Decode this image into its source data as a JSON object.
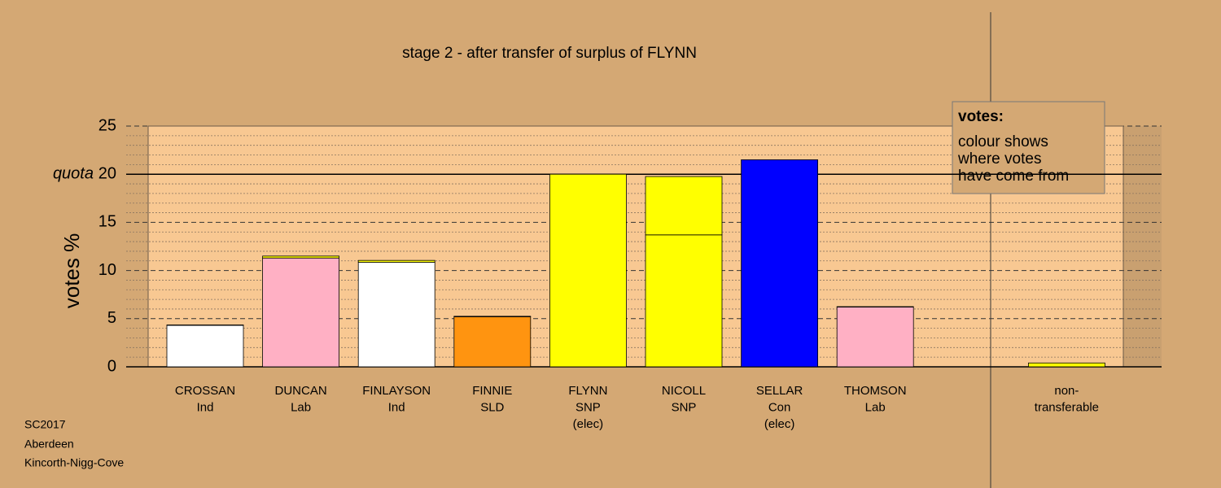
{
  "chart_data": {
    "type": "stacked-bar",
    "title": "stage 2 - after transfer of surplus of FLYNN",
    "y_label": "votes %",
    "quota_label": "quota",
    "quota": 20,
    "ylim": [
      0,
      25
    ],
    "yticks": [
      0,
      5,
      10,
      15,
      20,
      25
    ],
    "minor_yticks": [
      1,
      2,
      3,
      4,
      6,
      7,
      8,
      9,
      11,
      12,
      13,
      14,
      16,
      17,
      18,
      19,
      21,
      22,
      23,
      24
    ],
    "legend": {
      "title": "votes:",
      "lines": [
        "colour shows",
        "where votes",
        "have come from"
      ]
    },
    "bars": [
      {
        "label": [
          "CROSSAN",
          "Ind"
        ],
        "segments": [
          {
            "color": "#ffffff",
            "value": 4.3
          },
          {
            "color": "#ffff00",
            "value": 0.05
          }
        ]
      },
      {
        "label": [
          "DUNCAN",
          "Lab"
        ],
        "segments": [
          {
            "color": "#ffb0c4",
            "value": 11.3
          },
          {
            "color": "#ffff00",
            "value": 0.2
          }
        ]
      },
      {
        "label": [
          "FINLAYSON",
          "Ind"
        ],
        "segments": [
          {
            "color": "#ffffff",
            "value": 10.85
          },
          {
            "color": "#ffff00",
            "value": 0.2
          }
        ]
      },
      {
        "label": [
          "FINNIE",
          "SLD"
        ],
        "segments": [
          {
            "color": "#ff9410",
            "value": 5.2
          },
          {
            "color": "#ffff00",
            "value": 0.05
          }
        ]
      },
      {
        "label": [
          "FLYNN",
          "SNP",
          "(elec)"
        ],
        "segments": [
          {
            "color": "#ffff00",
            "value": 20
          }
        ]
      },
      {
        "label": [
          "NICOLL",
          "SNP"
        ],
        "segments": [
          {
            "color": "#ffff00",
            "value": 13.7
          },
          {
            "color": "#ffff00",
            "value": 6.06
          }
        ]
      },
      {
        "label": [
          "SELLAR",
          "Con",
          "(elec)"
        ],
        "segments": [
          {
            "color": "#0000ff",
            "value": 21.5
          }
        ]
      },
      {
        "label": [
          "THOMSON",
          "Lab"
        ],
        "segments": [
          {
            "color": "#ffb0c4",
            "value": 6.2
          },
          {
            "color": "#ffff00",
            "value": 0.05
          }
        ]
      }
    ],
    "nontransferable": {
      "label": [
        "non-",
        "transferable"
      ],
      "segments": [
        {
          "color": "#ffff00",
          "value": 0.4
        }
      ]
    }
  },
  "footer": [
    "SC2017",
    "Aberdeen",
    "Kincorth-Nigg-Cove"
  ]
}
